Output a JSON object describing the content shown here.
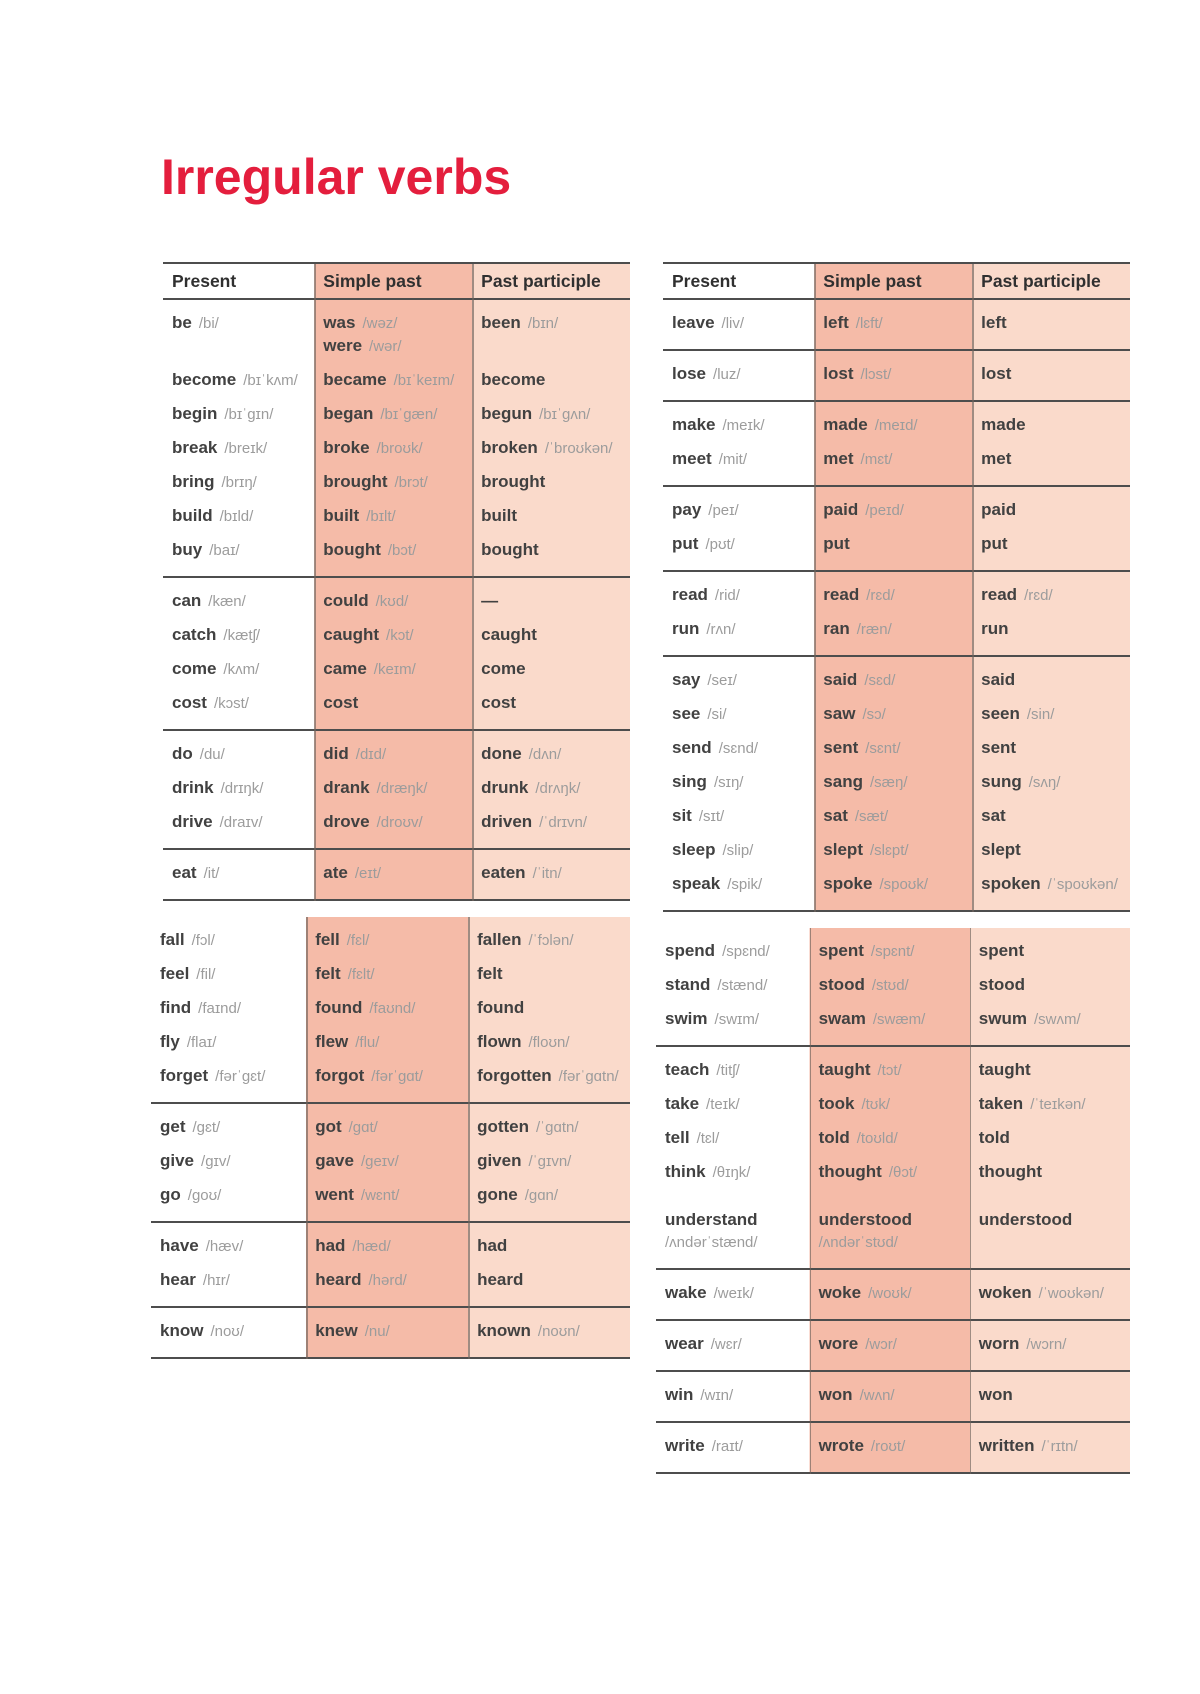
{
  "title": "Irregular verbs",
  "colors": {
    "title_red": "#e41e3d",
    "simple_past_column_bg": "#f5bba8",
    "past_participle_column_bg": "#fadacb",
    "rule_line": "#4d4d4d",
    "verb_text": "#414141",
    "ipa_text": "#9c9c9c"
  },
  "headers": [
    "Present",
    "Simple past",
    "Past participle"
  ],
  "tables": [
    {
      "id": "left",
      "blocks": [
        {
          "show_header": true,
          "shift": 0,
          "groups": [
            [
              {
                "present": "be",
                "present_ipa": "/bi/",
                "past": "was",
                "past_ipa": "/wəz/",
                "past2": "were",
                "past2_ipa": "/wər/",
                "participle": "been",
                "participle_ipa": "/bɪn/"
              },
              {
                "present": "become",
                "present_ipa": "/bɪˈkʌm/",
                "past": "became",
                "past_ipa": "/bɪˈkeɪm/",
                "participle": "become"
              },
              {
                "present": "begin",
                "present_ipa": "/bɪˈgɪn/",
                "past": "began",
                "past_ipa": "/bɪˈgæn/",
                "participle": "begun",
                "participle_ipa": "/bɪˈgʌn/"
              },
              {
                "present": "break",
                "present_ipa": "/breɪk/",
                "past": "broke",
                "past_ipa": "/broʊk/",
                "participle": "broken",
                "participle_ipa": "/ˈbroʊkən/"
              },
              {
                "present": "bring",
                "present_ipa": "/brɪŋ/",
                "past": "brought",
                "past_ipa": "/brɔt/",
                "participle": "brought"
              },
              {
                "present": "build",
                "present_ipa": "/bɪld/",
                "past": "built",
                "past_ipa": "/bɪlt/",
                "participle": "built"
              },
              {
                "present": "buy",
                "present_ipa": "/baɪ/",
                "past": "bought",
                "past_ipa": "/bɔt/",
                "participle": "bought"
              }
            ],
            [
              {
                "present": "can",
                "present_ipa": "/kæn/",
                "past": "could",
                "past_ipa": "/kʊd/",
                "participle": "—"
              },
              {
                "present": "catch",
                "present_ipa": "/kætʃ/",
                "past": "caught",
                "past_ipa": "/kɔt/",
                "participle": "caught"
              },
              {
                "present": "come",
                "present_ipa": "/kʌm/",
                "past": "came",
                "past_ipa": "/keɪm/",
                "participle": "come"
              },
              {
                "present": "cost",
                "present_ipa": "/kɔst/",
                "past": "cost",
                "participle": "cost"
              }
            ],
            [
              {
                "present": "do",
                "present_ipa": "/du/",
                "past": "did",
                "past_ipa": "/dɪd/",
                "participle": "done",
                "participle_ipa": "/dʌn/"
              },
              {
                "present": "drink",
                "present_ipa": "/drɪŋk/",
                "past": "drank",
                "past_ipa": "/dræŋk/",
                "participle": "drunk",
                "participle_ipa": "/drʌŋk/"
              },
              {
                "present": "drive",
                "present_ipa": "/draɪv/",
                "past": "drove",
                "past_ipa": "/droʊv/",
                "participle": "driven",
                "participle_ipa": "/ˈdrɪvn/"
              }
            ],
            [
              {
                "present": "eat",
                "present_ipa": "/it/",
                "past": "ate",
                "past_ipa": "/eɪt/",
                "participle": "eaten",
                "participle_ipa": "/ˈitn/"
              }
            ]
          ]
        },
        {
          "show_header": false,
          "shift": 12,
          "groups": [
            [
              {
                "present": "fall",
                "present_ipa": "/fɔl/",
                "past": "fell",
                "past_ipa": "/fɛl/",
                "participle": "fallen",
                "participle_ipa": "/ˈfɔlən/"
              },
              {
                "present": "feel",
                "present_ipa": "/fil/",
                "past": "felt",
                "past_ipa": "/fɛlt/",
                "participle": "felt"
              },
              {
                "present": "find",
                "present_ipa": "/faɪnd/",
                "past": "found",
                "past_ipa": "/faʊnd/",
                "participle": "found"
              },
              {
                "present": "fly",
                "present_ipa": "/flaɪ/",
                "past": "flew",
                "past_ipa": "/flu/",
                "participle": "flown",
                "participle_ipa": "/floʊn/"
              },
              {
                "present": "forget",
                "present_ipa": "/fərˈgɛt/",
                "past": "forgot",
                "past_ipa": "/fərˈgɑt/",
                "participle": "forgotten",
                "participle_ipa": "/fərˈgɑtn/"
              }
            ],
            [
              {
                "present": "get",
                "present_ipa": "/gɛt/",
                "past": "got",
                "past_ipa": "/gɑt/",
                "participle": "gotten",
                "participle_ipa": "/ˈgɑtn/"
              },
              {
                "present": "give",
                "present_ipa": "/gɪv/",
                "past": "gave",
                "past_ipa": "/geɪv/",
                "participle": "given",
                "participle_ipa": "/ˈgɪvn/"
              },
              {
                "present": "go",
                "present_ipa": "/goʊ/",
                "past": "went",
                "past_ipa": "/wɛnt/",
                "participle": "gone",
                "participle_ipa": "/gɑn/"
              }
            ],
            [
              {
                "present": "have",
                "present_ipa": "/hæv/",
                "past": "had",
                "past_ipa": "/hæd/",
                "participle": "had"
              },
              {
                "present": "hear",
                "present_ipa": "/hɪr/",
                "past": "heard",
                "past_ipa": "/hərd/",
                "participle": "heard"
              }
            ],
            [
              {
                "present": "know",
                "present_ipa": "/noʊ/",
                "past": "knew",
                "past_ipa": "/nu/",
                "participle": "known",
                "participle_ipa": "/noʊn/"
              }
            ]
          ]
        }
      ]
    },
    {
      "id": "right",
      "blocks": [
        {
          "show_header": true,
          "shift": 0,
          "groups": [
            [
              {
                "present": "leave",
                "present_ipa": "/liv/",
                "past": "left",
                "past_ipa": "/lɛft/",
                "participle": "left"
              }
            ],
            [
              {
                "present": "lose",
                "present_ipa": "/luz/",
                "past": "lost",
                "past_ipa": "/lɔst/",
                "participle": "lost"
              }
            ],
            [
              {
                "present": "make",
                "present_ipa": "/meɪk/",
                "past": "made",
                "past_ipa": "/meɪd/",
                "participle": "made"
              },
              {
                "present": "meet",
                "present_ipa": "/mit/",
                "past": "met",
                "past_ipa": "/mɛt/",
                "participle": "met"
              }
            ],
            [
              {
                "present": "pay",
                "present_ipa": "/peɪ/",
                "past": "paid",
                "past_ipa": "/peɪd/",
                "participle": "paid"
              },
              {
                "present": "put",
                "present_ipa": "/pʊt/",
                "past": "put",
                "participle": "put"
              }
            ],
            [
              {
                "present": "read",
                "present_ipa": "/rid/",
                "past": "read",
                "past_ipa": "/rɛd/",
                "participle": "read",
                "participle_ipa": "/rɛd/"
              },
              {
                "present": "run",
                "present_ipa": "/rʌn/",
                "past": "ran",
                "past_ipa": "/ræn/",
                "participle": "run"
              }
            ],
            [
              {
                "present": "say",
                "present_ipa": "/seɪ/",
                "past": "said",
                "past_ipa": "/sɛd/",
                "participle": "said"
              },
              {
                "present": "see",
                "present_ipa": "/si/",
                "past": "saw",
                "past_ipa": "/sɔ/",
                "participle": "seen",
                "participle_ipa": "/sin/"
              },
              {
                "present": "send",
                "present_ipa": "/sɛnd/",
                "past": "sent",
                "past_ipa": "/sɛnt/",
                "participle": "sent"
              },
              {
                "present": "sing",
                "present_ipa": "/sɪŋ/",
                "past": "sang",
                "past_ipa": "/sæŋ/",
                "participle": "sung",
                "participle_ipa": "/sʌŋ/"
              },
              {
                "present": "sit",
                "present_ipa": "/sɪt/",
                "past": "sat",
                "past_ipa": "/sæt/",
                "participle": "sat"
              },
              {
                "present": "sleep",
                "present_ipa": "/slip/",
                "past": "slept",
                "past_ipa": "/slɛpt/",
                "participle": "slept"
              },
              {
                "present": "speak",
                "present_ipa": "/spik/",
                "past": "spoke",
                "past_ipa": "/spoʊk/",
                "participle": "spoken",
                "participle_ipa": "/ˈspoʊkən/"
              }
            ]
          ]
        },
        {
          "show_header": false,
          "shift": 7,
          "groups": [
            [
              {
                "present": "spend",
                "present_ipa": "/spɛnd/",
                "past": "spent",
                "past_ipa": "/spɛnt/",
                "participle": "spent"
              },
              {
                "present": "stand",
                "present_ipa": "/stænd/",
                "past": "stood",
                "past_ipa": "/stʊd/",
                "participle": "stood"
              },
              {
                "present": "swim",
                "present_ipa": "/swɪm/",
                "past": "swam",
                "past_ipa": "/swæm/",
                "participle": "swum",
                "participle_ipa": "/swʌm/"
              }
            ],
            [
              {
                "present": "teach",
                "present_ipa": "/titʃ/",
                "past": "taught",
                "past_ipa": "/tɔt/",
                "participle": "taught"
              },
              {
                "present": "take",
                "present_ipa": "/teɪk/",
                "past": "took",
                "past_ipa": "/tʊk/",
                "participle": "taken",
                "participle_ipa": "/ˈteɪkən/"
              },
              {
                "present": "tell",
                "present_ipa": "/tɛl/",
                "past": "told",
                "past_ipa": "/toʊld/",
                "participle": "told"
              },
              {
                "present": "think",
                "present_ipa": "/θɪŋk/",
                "past": "thought",
                "past_ipa": "/θɔt/",
                "participle": "thought"
              },
              {
                "present": "understand",
                "present_ipa": "/ʌndərˈstænd/",
                "past": "understood",
                "past_ipa": "/ʌndərˈstʊd/",
                "participle": "understood",
                "stack": true,
                "gap_above": true
              }
            ],
            [
              {
                "present": "wake",
                "present_ipa": "/weɪk/",
                "past": "woke",
                "past_ipa": "/woʊk/",
                "participle": "woken",
                "participle_ipa": "/ˈwoʊkən/"
              }
            ],
            [
              {
                "present": "wear",
                "present_ipa": "/wɛr/",
                "past": "wore",
                "past_ipa": "/wɔr/",
                "participle": "worn",
                "participle_ipa": "/wɔrn/"
              }
            ],
            [
              {
                "present": "win",
                "present_ipa": "/wɪn/",
                "past": "won",
                "past_ipa": "/wʌn/",
                "participle": "won"
              }
            ],
            [
              {
                "present": "write",
                "present_ipa": "/raɪt/",
                "past": "wrote",
                "past_ipa": "/roʊt/",
                "participle": "written",
                "participle_ipa": "/ˈrɪtn/"
              }
            ]
          ]
        }
      ]
    }
  ]
}
